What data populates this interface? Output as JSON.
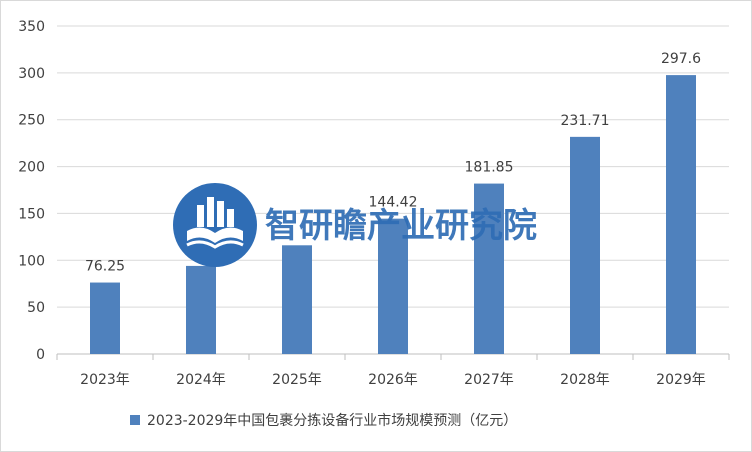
{
  "chart_data": {
    "type": "bar",
    "title": "",
    "xlabel": "",
    "ylabel": "",
    "categories": [
      "2023年",
      "2024年",
      "2025年",
      "2026年",
      "2027年",
      "2028年",
      "2029年"
    ],
    "series": [
      {
        "name": "2023-2029年中国包裹分拣设备行业市场规模预测（亿元）",
        "values": [
          76.25,
          94.0,
          116.0,
          144.42,
          181.85,
          231.71,
          297.6
        ],
        "data_labels": [
          "76.25",
          null,
          null,
          "144.42",
          "181.85",
          "231.71",
          "297.6"
        ]
      }
    ],
    "ylim": [
      0,
      350
    ],
    "yticks": [
      0,
      50,
      100,
      150,
      200,
      250,
      300,
      350
    ],
    "grid": true,
    "legend_position": "bottom",
    "colors": {
      "bar": "#4f81bd",
      "grid": "#d9d9d9",
      "text": "#404040"
    }
  },
  "watermark": {
    "text": "智研瞻产业研究院",
    "logo_icon": "city-book-logo-icon"
  }
}
